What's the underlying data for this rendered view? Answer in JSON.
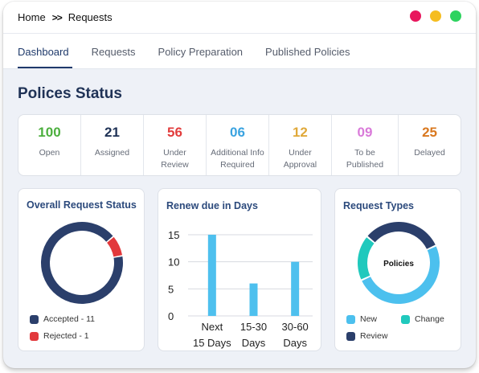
{
  "breadcrumb": {
    "home": "Home",
    "separator": ">>",
    "current": "Requests"
  },
  "window_dots": [
    "#e8175d",
    "#f5bd1f",
    "#2ed35f"
  ],
  "tabs": [
    {
      "label": "Dashboard",
      "active": true
    },
    {
      "label": "Requests",
      "active": false
    },
    {
      "label": "Policy Preparation",
      "active": false
    },
    {
      "label": "Published Policies",
      "active": false
    }
  ],
  "page_title": "Polices Status",
  "stats": [
    {
      "value": "100",
      "label": "Open",
      "color": "#4caf3e"
    },
    {
      "value": "21",
      "label": "Assigned",
      "color": "#1f3256"
    },
    {
      "value": "56",
      "label": "Under Review",
      "color": "#e23d3d"
    },
    {
      "value": "06",
      "label": "Additional Info Required",
      "color": "#3aa3e0"
    },
    {
      "value": "12",
      "label": "Under Approval",
      "color": "#e0a93a"
    },
    {
      "value": "09",
      "label": "To be Published",
      "color": "#d97ad9"
    },
    {
      "value": "25",
      "label": "Delayed",
      "color": "#d9781f"
    }
  ],
  "overall_status": {
    "title": "Overall Request Status",
    "legend": [
      {
        "label": "Accepted - 11",
        "color": "#2b3f6b"
      },
      {
        "label": "Rejected - 1",
        "color": "#e2393c"
      }
    ]
  },
  "renew": {
    "title": "Renew due in Days"
  },
  "request_types": {
    "title": "Request Types",
    "center_label": "Policies",
    "legend": [
      {
        "label": "New",
        "color": "#4cc0ee"
      },
      {
        "label": "Change",
        "color": "#20c9bd"
      },
      {
        "label": "Review",
        "color": "#2b3f6b"
      }
    ]
  },
  "chart_data": [
    {
      "type": "pie",
      "title": "Overall Request Status",
      "categories": [
        "Accepted",
        "Rejected"
      ],
      "values": [
        11,
        1
      ],
      "colors": [
        "#2b3f6b",
        "#e2393c"
      ]
    },
    {
      "type": "bar",
      "title": "Renew due in Days",
      "categories": [
        "Next 15 Days",
        "15-30 Days",
        "30-60 Days"
      ],
      "values": [
        15,
        6,
        10
      ],
      "ylim": [
        0,
        15
      ],
      "yticks": [
        0,
        5,
        10,
        15
      ],
      "grid": true,
      "color": "#4ec0ee"
    },
    {
      "type": "pie",
      "title": "Request Types",
      "categories": [
        "New",
        "Change",
        "Review"
      ],
      "values": [
        50,
        18,
        32
      ],
      "colors": [
        "#4cc0ee",
        "#20c9bd",
        "#2b3f6b"
      ]
    }
  ]
}
